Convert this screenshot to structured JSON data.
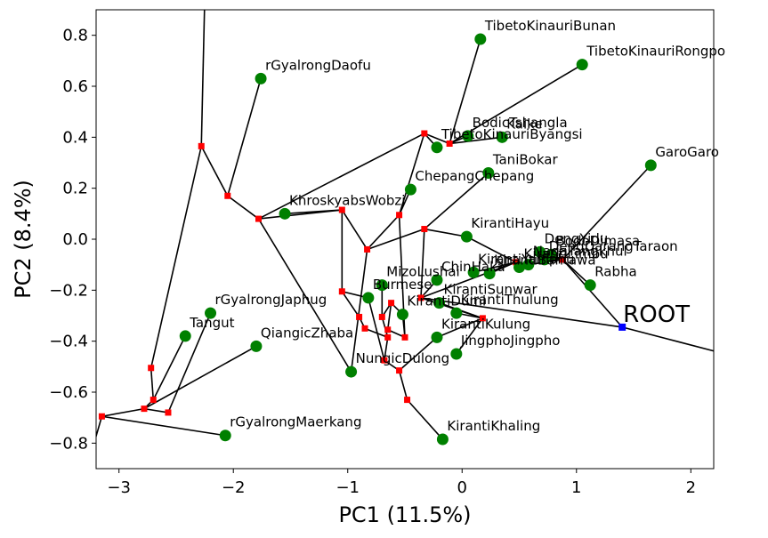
{
  "chart_data": {
    "type": "scatter",
    "xlabel": "PC1 (11.5%)",
    "ylabel": "PC2 (8.4%)",
    "xlim": [
      -3.2,
      2.2
    ],
    "ylim": [
      -0.9,
      0.9
    ],
    "xticks": [
      -3,
      -2,
      -1,
      0,
      1,
      2
    ],
    "xtick_labels": [
      "−3",
      "−2",
      "−1",
      "0",
      "1",
      "2"
    ],
    "yticks": [
      -0.8,
      -0.6,
      -0.4,
      -0.2,
      0.0,
      0.2,
      0.4,
      0.6,
      0.8
    ],
    "ytick_labels": [
      "−0.8",
      "−0.6",
      "−0.4",
      "−0.2",
      "0.0",
      "0.2",
      "0.4",
      "0.6",
      "0.8"
    ],
    "grid": false,
    "colors": {
      "leaf": "#008000",
      "node": "#ff0000",
      "root": "#0000ff",
      "edge": "#000000"
    },
    "root": {
      "label": "ROOT",
      "x": 1.4,
      "y": -0.345
    },
    "leaves": [
      {
        "id": "L1",
        "label": "TibetoKinauriBunan",
        "x": 0.16,
        "y": 0.785
      },
      {
        "id": "L2",
        "label": "TibetoKinauriRongpo",
        "x": 1.05,
        "y": 0.685
      },
      {
        "id": "L3",
        "label": "rGyalrongDaofu",
        "x": -1.76,
        "y": 0.63
      },
      {
        "id": "L4",
        "label": "BodicTshangla",
        "x": 0.05,
        "y": 0.405
      },
      {
        "id": "L5",
        "label": "Kaike",
        "x": 0.35,
        "y": 0.4
      },
      {
        "id": "L6",
        "label": "TibetoKinauriByangsi",
        "x": -0.22,
        "y": 0.36
      },
      {
        "id": "L7",
        "label": "GaroGaro",
        "x": 1.65,
        "y": 0.29
      },
      {
        "id": "L8",
        "label": "TaniBokar",
        "x": 0.23,
        "y": 0.26
      },
      {
        "id": "L9",
        "label": "ChepangChepang",
        "x": -0.45,
        "y": 0.195
      },
      {
        "id": "L10",
        "label": "KhroskyabsWobzi",
        "x": -1.55,
        "y": 0.1
      },
      {
        "id": "L11",
        "label": "KirantiHayu",
        "x": 0.04,
        "y": 0.01
      },
      {
        "id": "L12",
        "label": "DengYidu",
        "x": 0.68,
        "y": -0.05
      },
      {
        "id": "L13",
        "label": "BodoDimasa",
        "x": 0.78,
        "y": -0.06
      },
      {
        "id": "L14",
        "label": "DengDarangTaraon",
        "x": 0.72,
        "y": -0.08
      },
      {
        "id": "L15",
        "label": "NagaTangkhul",
        "x": 0.58,
        "y": -0.1
      },
      {
        "id": "L16",
        "label": "KirantiLimbu",
        "x": 0.5,
        "y": -0.11
      },
      {
        "id": "L17",
        "label": "Rabha",
        "x": 1.12,
        "y": -0.18
      },
      {
        "id": "L18",
        "label": "KirantiYamphu",
        "x": 0.1,
        "y": -0.13
      },
      {
        "id": "L19",
        "label": "KirantiBantawa",
        "x": 0.24,
        "y": -0.135
      },
      {
        "id": "L20",
        "label": "ChinHaka",
        "x": -0.22,
        "y": -0.16
      },
      {
        "id": "L21",
        "label": "MizoLushai",
        "x": -0.7,
        "y": -0.18
      },
      {
        "id": "L22",
        "label": "rGyalrongJaphug",
        "x": -2.2,
        "y": -0.29
      },
      {
        "id": "L23",
        "label": "KirantiThulung",
        "x": -0.05,
        "y": -0.29
      },
      {
        "id": "L24",
        "label": "KirantiDumi",
        "x": -0.52,
        "y": -0.295
      },
      {
        "id": "L25",
        "label": "KirantiSunwar",
        "x": -0.2,
        "y": -0.25
      },
      {
        "id": "L26",
        "label": "KirantiKulung",
        "x": -0.22,
        "y": -0.385
      },
      {
        "id": "L27",
        "label": "Tangut",
        "x": -2.42,
        "y": -0.38
      },
      {
        "id": "L28",
        "label": "QiangicZhaba",
        "x": -1.8,
        "y": -0.42
      },
      {
        "id": "L29",
        "label": "JingphoJingpho",
        "x": -0.05,
        "y": -0.45
      },
      {
        "id": "L30",
        "label": "NungicDulong",
        "x": -0.97,
        "y": -0.52
      },
      {
        "id": "L31",
        "label": "Burmese",
        "x": -0.82,
        "y": -0.23
      },
      {
        "id": "L32",
        "label": "rGyalrongMaerkang",
        "x": -2.07,
        "y": -0.77
      },
      {
        "id": "L33",
        "label": "KirantiKhaling",
        "x": -0.17,
        "y": -0.785
      }
    ],
    "nodes": [
      {
        "id": "N1",
        "x": -2.28,
        "y": 0.365
      },
      {
        "id": "N2",
        "x": -2.05,
        "y": 0.17
      },
      {
        "id": "N3",
        "x": -1.78,
        "y": 0.08
      },
      {
        "id": "N4",
        "x": -0.33,
        "y": 0.415
      },
      {
        "id": "N5",
        "x": -0.11,
        "y": 0.375
      },
      {
        "id": "N6",
        "x": -1.05,
        "y": 0.115
      },
      {
        "id": "N7",
        "x": -0.55,
        "y": 0.095
      },
      {
        "id": "N8",
        "x": -0.83,
        "y": -0.04
      },
      {
        "id": "N9",
        "x": -0.33,
        "y": 0.04
      },
      {
        "id": "N10",
        "x": -1.05,
        "y": -0.205
      },
      {
        "id": "N11",
        "x": -0.9,
        "y": -0.305
      },
      {
        "id": "N12",
        "x": -0.7,
        "y": -0.305
      },
      {
        "id": "N13",
        "x": -0.85,
        "y": -0.35
      },
      {
        "id": "N14",
        "x": -0.62,
        "y": -0.25
      },
      {
        "id": "N15",
        "x": -0.65,
        "y": -0.355
      },
      {
        "id": "N16",
        "x": -0.65,
        "y": -0.385
      },
      {
        "id": "N17",
        "x": -0.5,
        "y": -0.385
      },
      {
        "id": "N18",
        "x": -0.68,
        "y": -0.475
      },
      {
        "id": "N19",
        "x": -0.55,
        "y": -0.515
      },
      {
        "id": "N20",
        "x": -0.48,
        "y": -0.63
      },
      {
        "id": "N21",
        "x": -0.36,
        "y": -0.23
      },
      {
        "id": "N22",
        "x": 0.18,
        "y": -0.31
      },
      {
        "id": "N23",
        "x": 0.47,
        "y": -0.09
      },
      {
        "id": "N24",
        "x": 0.88,
        "y": -0.08
      },
      {
        "id": "N25",
        "x": -2.72,
        "y": -0.505
      },
      {
        "id": "N26",
        "x": -2.7,
        "y": -0.63
      },
      {
        "id": "N27",
        "x": -2.57,
        "y": -0.68
      },
      {
        "id": "N28",
        "x": -2.78,
        "y": -0.665
      },
      {
        "id": "N29",
        "x": -3.15,
        "y": -0.695
      }
    ],
    "edges": [
      [
        "ROOT",
        "N21"
      ],
      [
        "ROOT",
        "N24"
      ],
      [
        "N24",
        "L7"
      ],
      [
        "N24",
        "L17"
      ],
      [
        "N24",
        "L12"
      ],
      [
        "N24",
        "L13"
      ],
      [
        "N24",
        "L14"
      ],
      [
        "N24",
        "L15"
      ],
      [
        "N23",
        "L16"
      ],
      [
        "N23",
        "L19"
      ],
      [
        "N23",
        "L18"
      ],
      [
        "N23",
        "L11"
      ],
      [
        "N21",
        "N23"
      ],
      [
        "N21",
        "N9"
      ],
      [
        "N21",
        "L20"
      ],
      [
        "N21",
        "N22"
      ],
      [
        "N22",
        "L23"
      ],
      [
        "N22",
        "L29"
      ],
      [
        "N22",
        "L26"
      ],
      [
        "N22",
        "L25"
      ],
      [
        "N9",
        "L11"
      ],
      [
        "N9",
        "L8"
      ],
      [
        "N9",
        "N8"
      ],
      [
        "N8",
        "N7"
      ],
      [
        "N8",
        "N6"
      ],
      [
        "N8",
        "L30"
      ],
      [
        "N7",
        "L9"
      ],
      [
        "N7",
        "N4"
      ],
      [
        "N7",
        "N17"
      ],
      [
        "N4",
        "L6"
      ],
      [
        "N4",
        "N5"
      ],
      [
        "N4",
        "N3"
      ],
      [
        "N5",
        "L4"
      ],
      [
        "N5",
        "L5"
      ],
      [
        "N5",
        "L1"
      ],
      [
        "N5",
        "L2"
      ],
      [
        "N6",
        "N10"
      ],
      [
        "N6",
        "L10"
      ],
      [
        "N6",
        "N3"
      ],
      [
        "N3",
        "N2"
      ],
      [
        "N3",
        "L30"
      ],
      [
        "N2",
        "L3"
      ],
      [
        "N2",
        "N1"
      ],
      [
        "N1",
        "N25"
      ],
      [
        "N10",
        "N11"
      ],
      [
        "N10",
        "L31"
      ],
      [
        "N11",
        "N13"
      ],
      [
        "N13",
        "N16"
      ],
      [
        "N16",
        "N12"
      ],
      [
        "N12",
        "L21"
      ],
      [
        "N12",
        "N14"
      ],
      [
        "N14",
        "L24"
      ],
      [
        "N14",
        "N15"
      ],
      [
        "N15",
        "N17"
      ],
      [
        "N17",
        "L24"
      ],
      [
        "N16",
        "N18"
      ],
      [
        "N18",
        "N19"
      ],
      [
        "N19",
        "N20"
      ],
      [
        "N20",
        "L33"
      ],
      [
        "N19",
        "L26"
      ],
      [
        "N18",
        "L31"
      ],
      [
        "N25",
        "N26"
      ],
      [
        "N26",
        "L27"
      ],
      [
        "N26",
        "N28"
      ],
      [
        "N28",
        "N27"
      ],
      [
        "N27",
        "L22"
      ],
      [
        "N28",
        "N29"
      ],
      [
        "N29",
        "L32"
      ],
      [
        "N28",
        "L28"
      ]
    ],
    "external_lines": [
      {
        "from": "N1",
        "to": [
          -2.25,
          0.95
        ]
      },
      {
        "from": "N29",
        "to": [
          -3.25,
          -0.85
        ]
      },
      {
        "from": "ROOT",
        "to": [
          2.3,
          -0.45
        ]
      }
    ]
  }
}
